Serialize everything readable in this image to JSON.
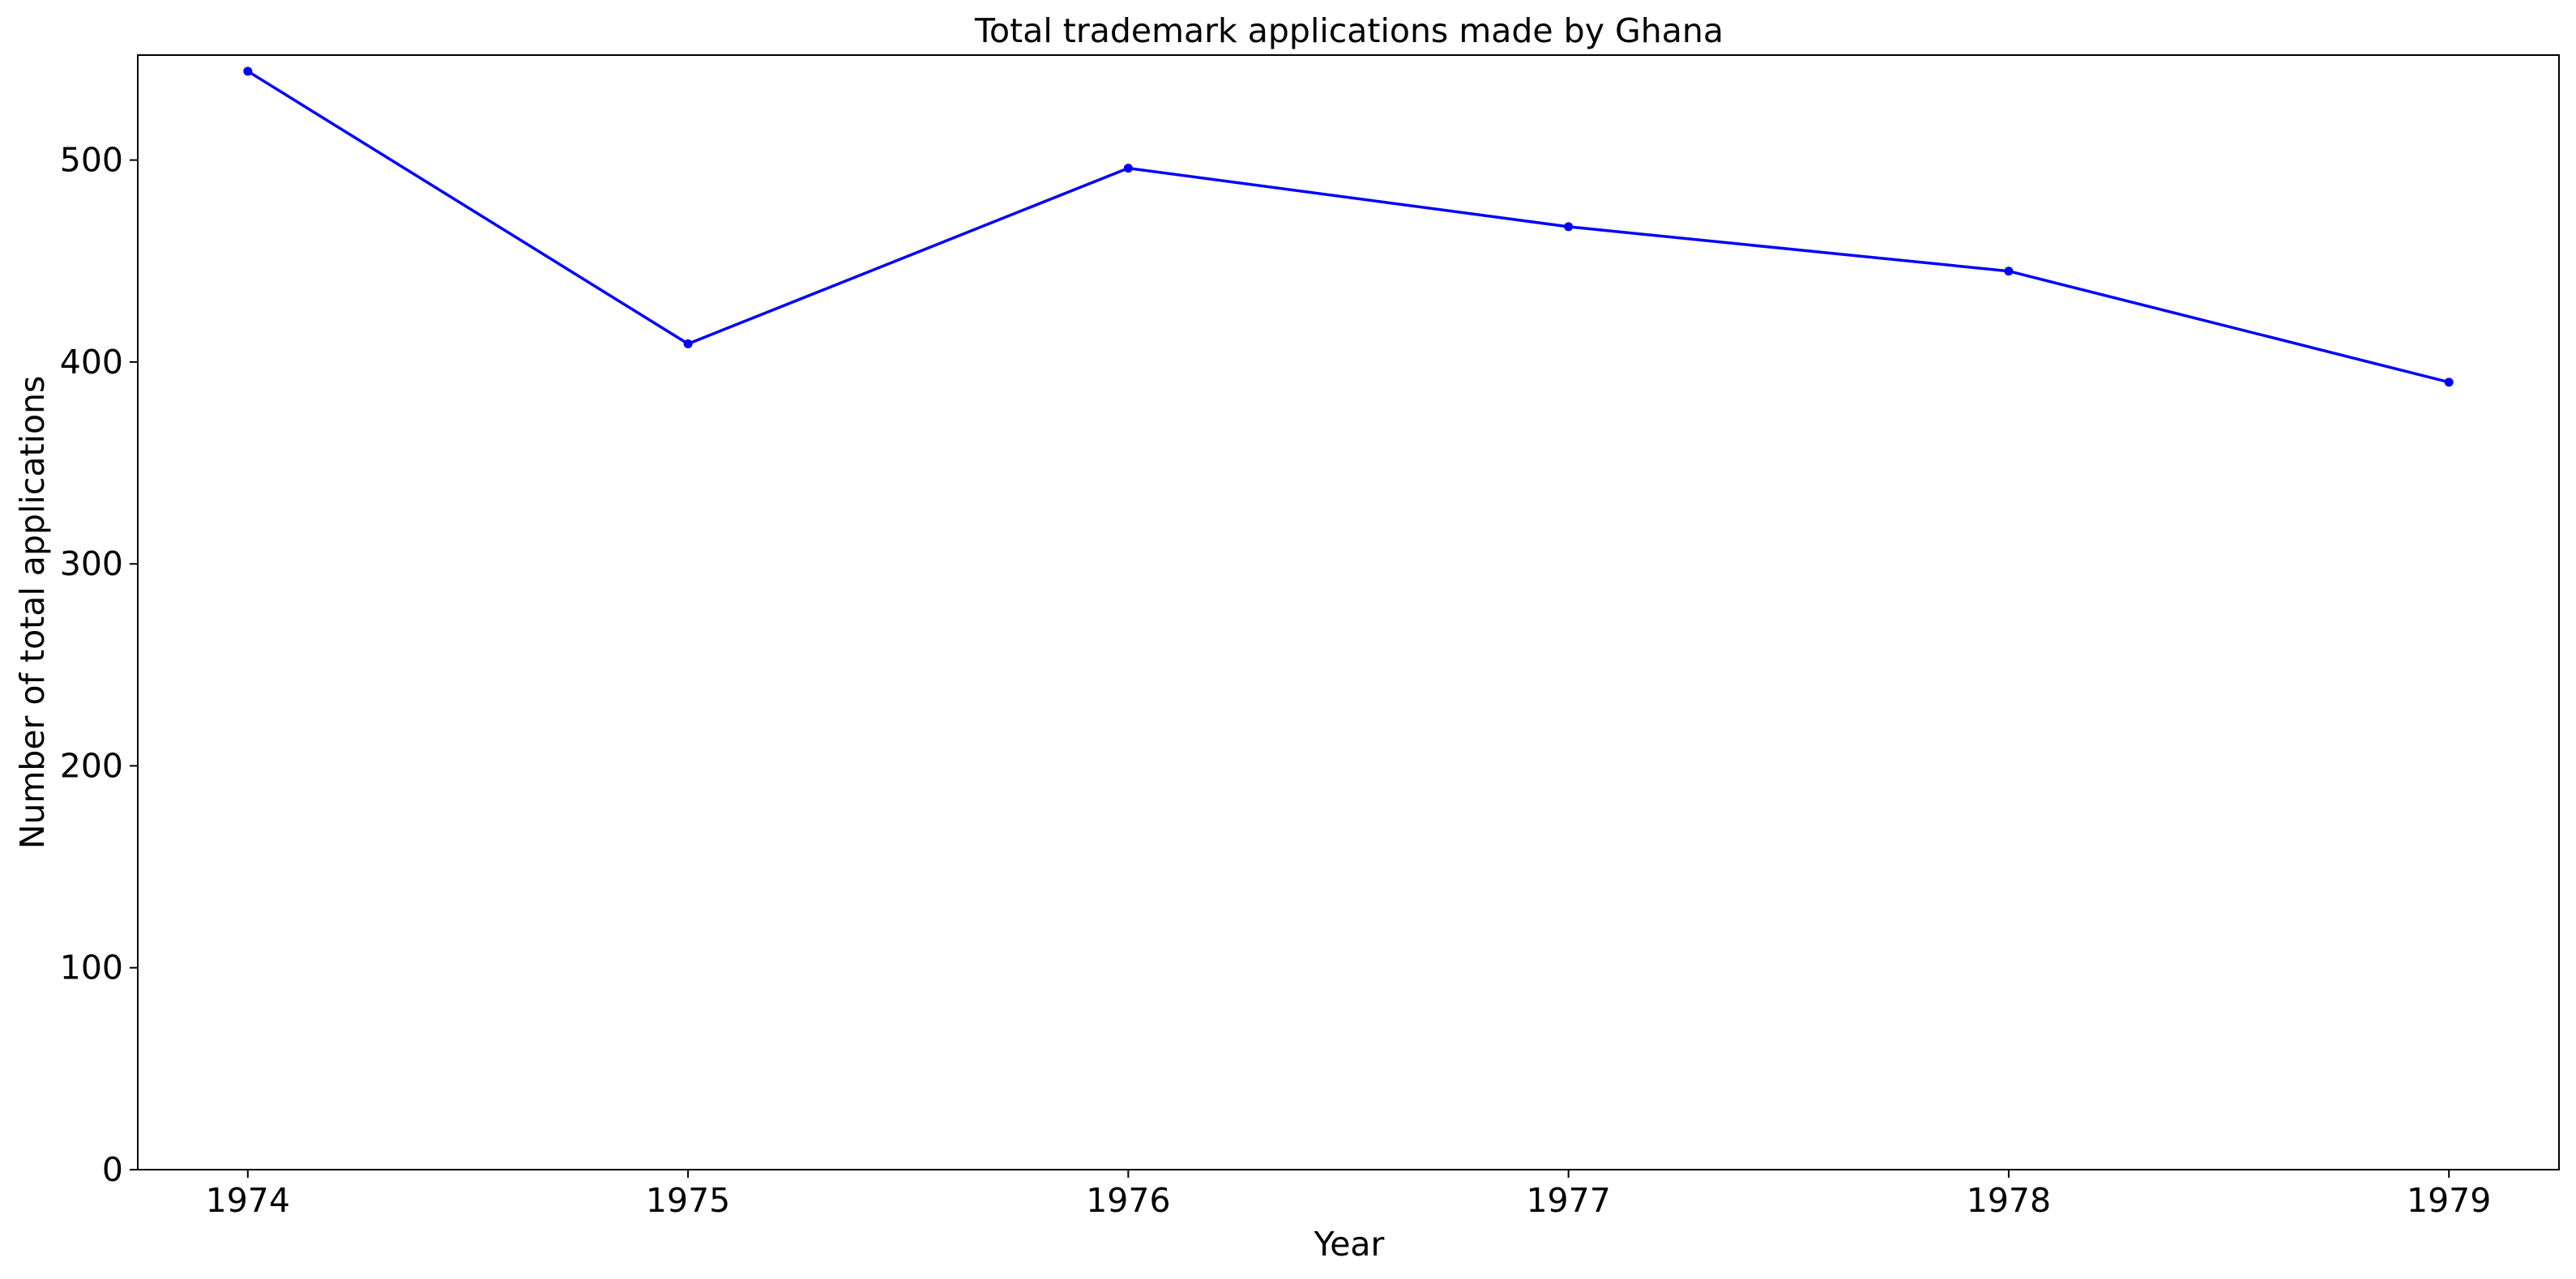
{
  "chart_data": {
    "type": "line",
    "title": "Total trademark applications made by Ghana",
    "xlabel": "Year",
    "ylabel": "Number of total applications",
    "x": [
      1974,
      1975,
      1976,
      1977,
      1978,
      1979
    ],
    "series": [
      {
        "values": [
          544,
          409,
          496,
          467,
          445,
          390
        ],
        "color": "#0000ff",
        "marker": "dot"
      }
    ],
    "xticks": [
      "1974",
      "1975",
      "1976",
      "1977",
      "1978",
      "1979"
    ],
    "yticks": [
      "0",
      "100",
      "200",
      "300",
      "400",
      "500"
    ],
    "xlim": [
      1973.75,
      1979.25
    ],
    "ylim": [
      0,
      552
    ],
    "grid": false,
    "legend": "none"
  }
}
